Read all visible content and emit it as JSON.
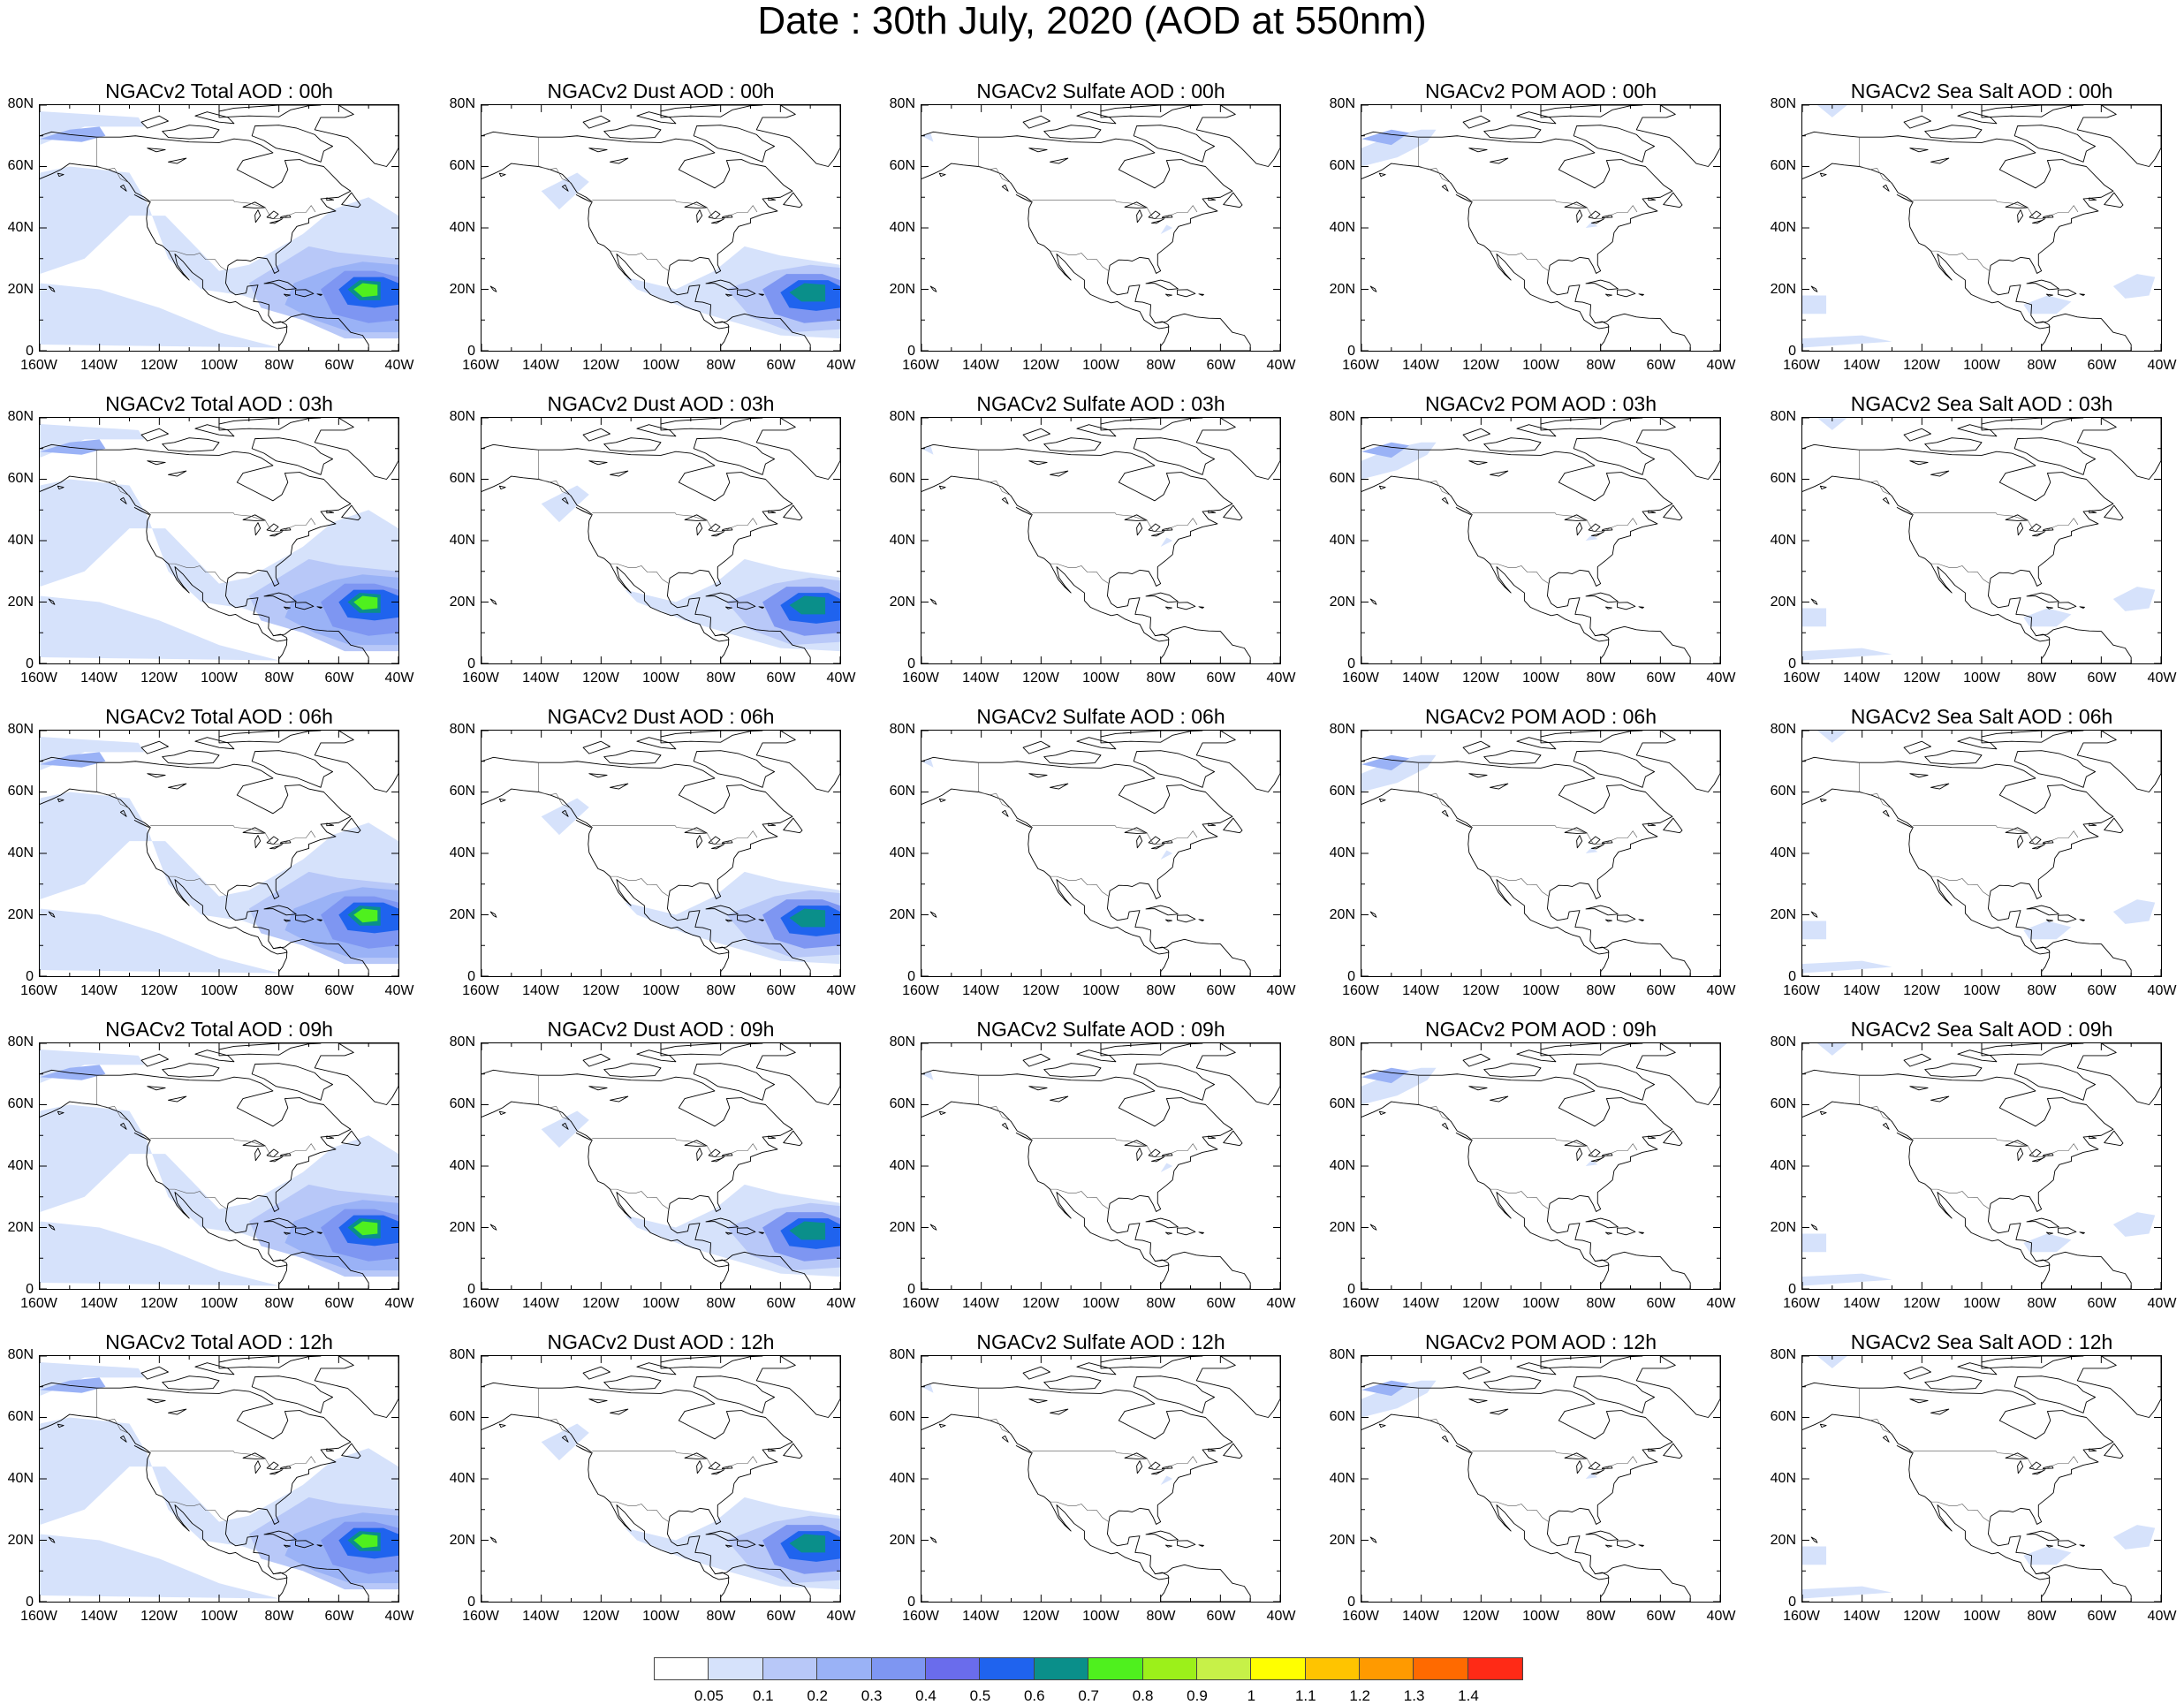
{
  "title": "Date : 30th July, 2020 (AOD at 550nm)",
  "lat_labels": [
    "80N",
    "60N",
    "40N",
    "20N",
    "0"
  ],
  "lon_labels": [
    "160W",
    "140W",
    "120W",
    "100W",
    "80W",
    "60W",
    "40W"
  ],
  "panel_titles": [
    [
      "NGACv2 Total AOD : 00h",
      "NGACv2 Dust AOD : 00h",
      "NGACv2 Sulfate AOD : 00h",
      "NGACv2 POM AOD : 00h",
      "NGACv2 Sea Salt AOD : 00h"
    ],
    [
      "NGACv2 Total AOD : 03h",
      "NGACv2 Dust AOD : 03h",
      "NGACv2 Sulfate AOD : 03h",
      "NGACv2 POM AOD : 03h",
      "NGACv2 Sea Salt AOD : 03h"
    ],
    [
      "NGACv2 Total AOD : 06h",
      "NGACv2 Dust AOD : 06h",
      "NGACv2 Sulfate AOD : 06h",
      "NGACv2 POM AOD : 06h",
      "NGACv2 Sea Salt AOD : 06h"
    ],
    [
      "NGACv2 Total AOD : 09h",
      "NGACv2 Dust AOD : 09h",
      "NGACv2 Sulfate AOD : 09h",
      "NGACv2 POM AOD : 09h",
      "NGACv2 Sea Salt  AOD : 09h"
    ],
    [
      "NGACv2 Total AOD  : 12h",
      "NGACv2 Dust AOD : 12h",
      "NGACv2 Sulfate AOD : 12h",
      "NGACv2 POM  AOD : 12h",
      "NGACv2 Sea Salt  AOD : 12h"
    ]
  ],
  "colorbar": {
    "colors": [
      "#ffffff",
      "#d6e2fb",
      "#b8c8f8",
      "#9ab2f6",
      "#7e96f2",
      "#6a6cec",
      "#1f63ee",
      "#0a8f8a",
      "#4ff01e",
      "#9cf01a",
      "#c7f148",
      "#ffff00",
      "#ffc400",
      "#ff9a00",
      "#ff6a00",
      "#ff2a16"
    ],
    "labels": [
      "0.05",
      "0.1",
      "0.2",
      "0.3",
      "0.4",
      "0.5",
      "0.6",
      "0.7",
      "0.8",
      "0.9",
      "1",
      "1.1",
      "1.2",
      "1.3",
      "1.4"
    ]
  },
  "aerosol_colors": {
    "light": "#d6e2fb",
    "medium": "#b8c8f8",
    "mid": "#9ab2f6",
    "strong": "#7e96f2",
    "deep": "#1f63ee",
    "teal": "#0a8f8a",
    "green": "#4ff01e"
  }
}
